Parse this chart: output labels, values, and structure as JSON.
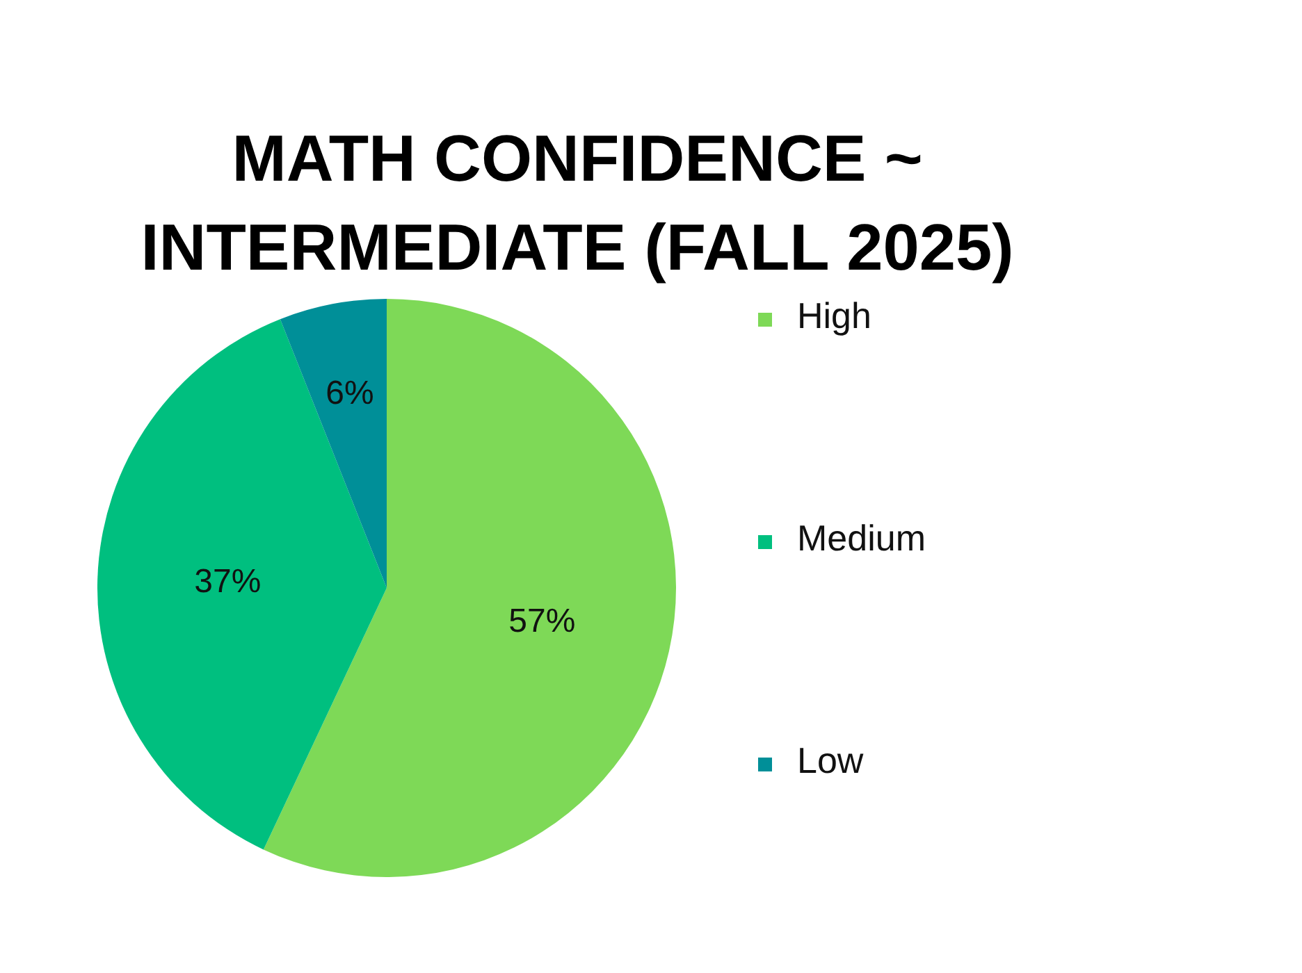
{
  "chart_data": {
    "type": "pie",
    "title": "MATH CONFIDENCE ~ INTERMEDIATE (FALL 2025)",
    "categories": [
      "High",
      "Medium",
      "Low"
    ],
    "values": [
      57,
      37,
      6
    ],
    "colors": [
      "#7ed957",
      "#00bf7f",
      "#008f98"
    ],
    "value_labels": [
      "57%",
      "37%",
      "6%"
    ],
    "legend": "right"
  }
}
